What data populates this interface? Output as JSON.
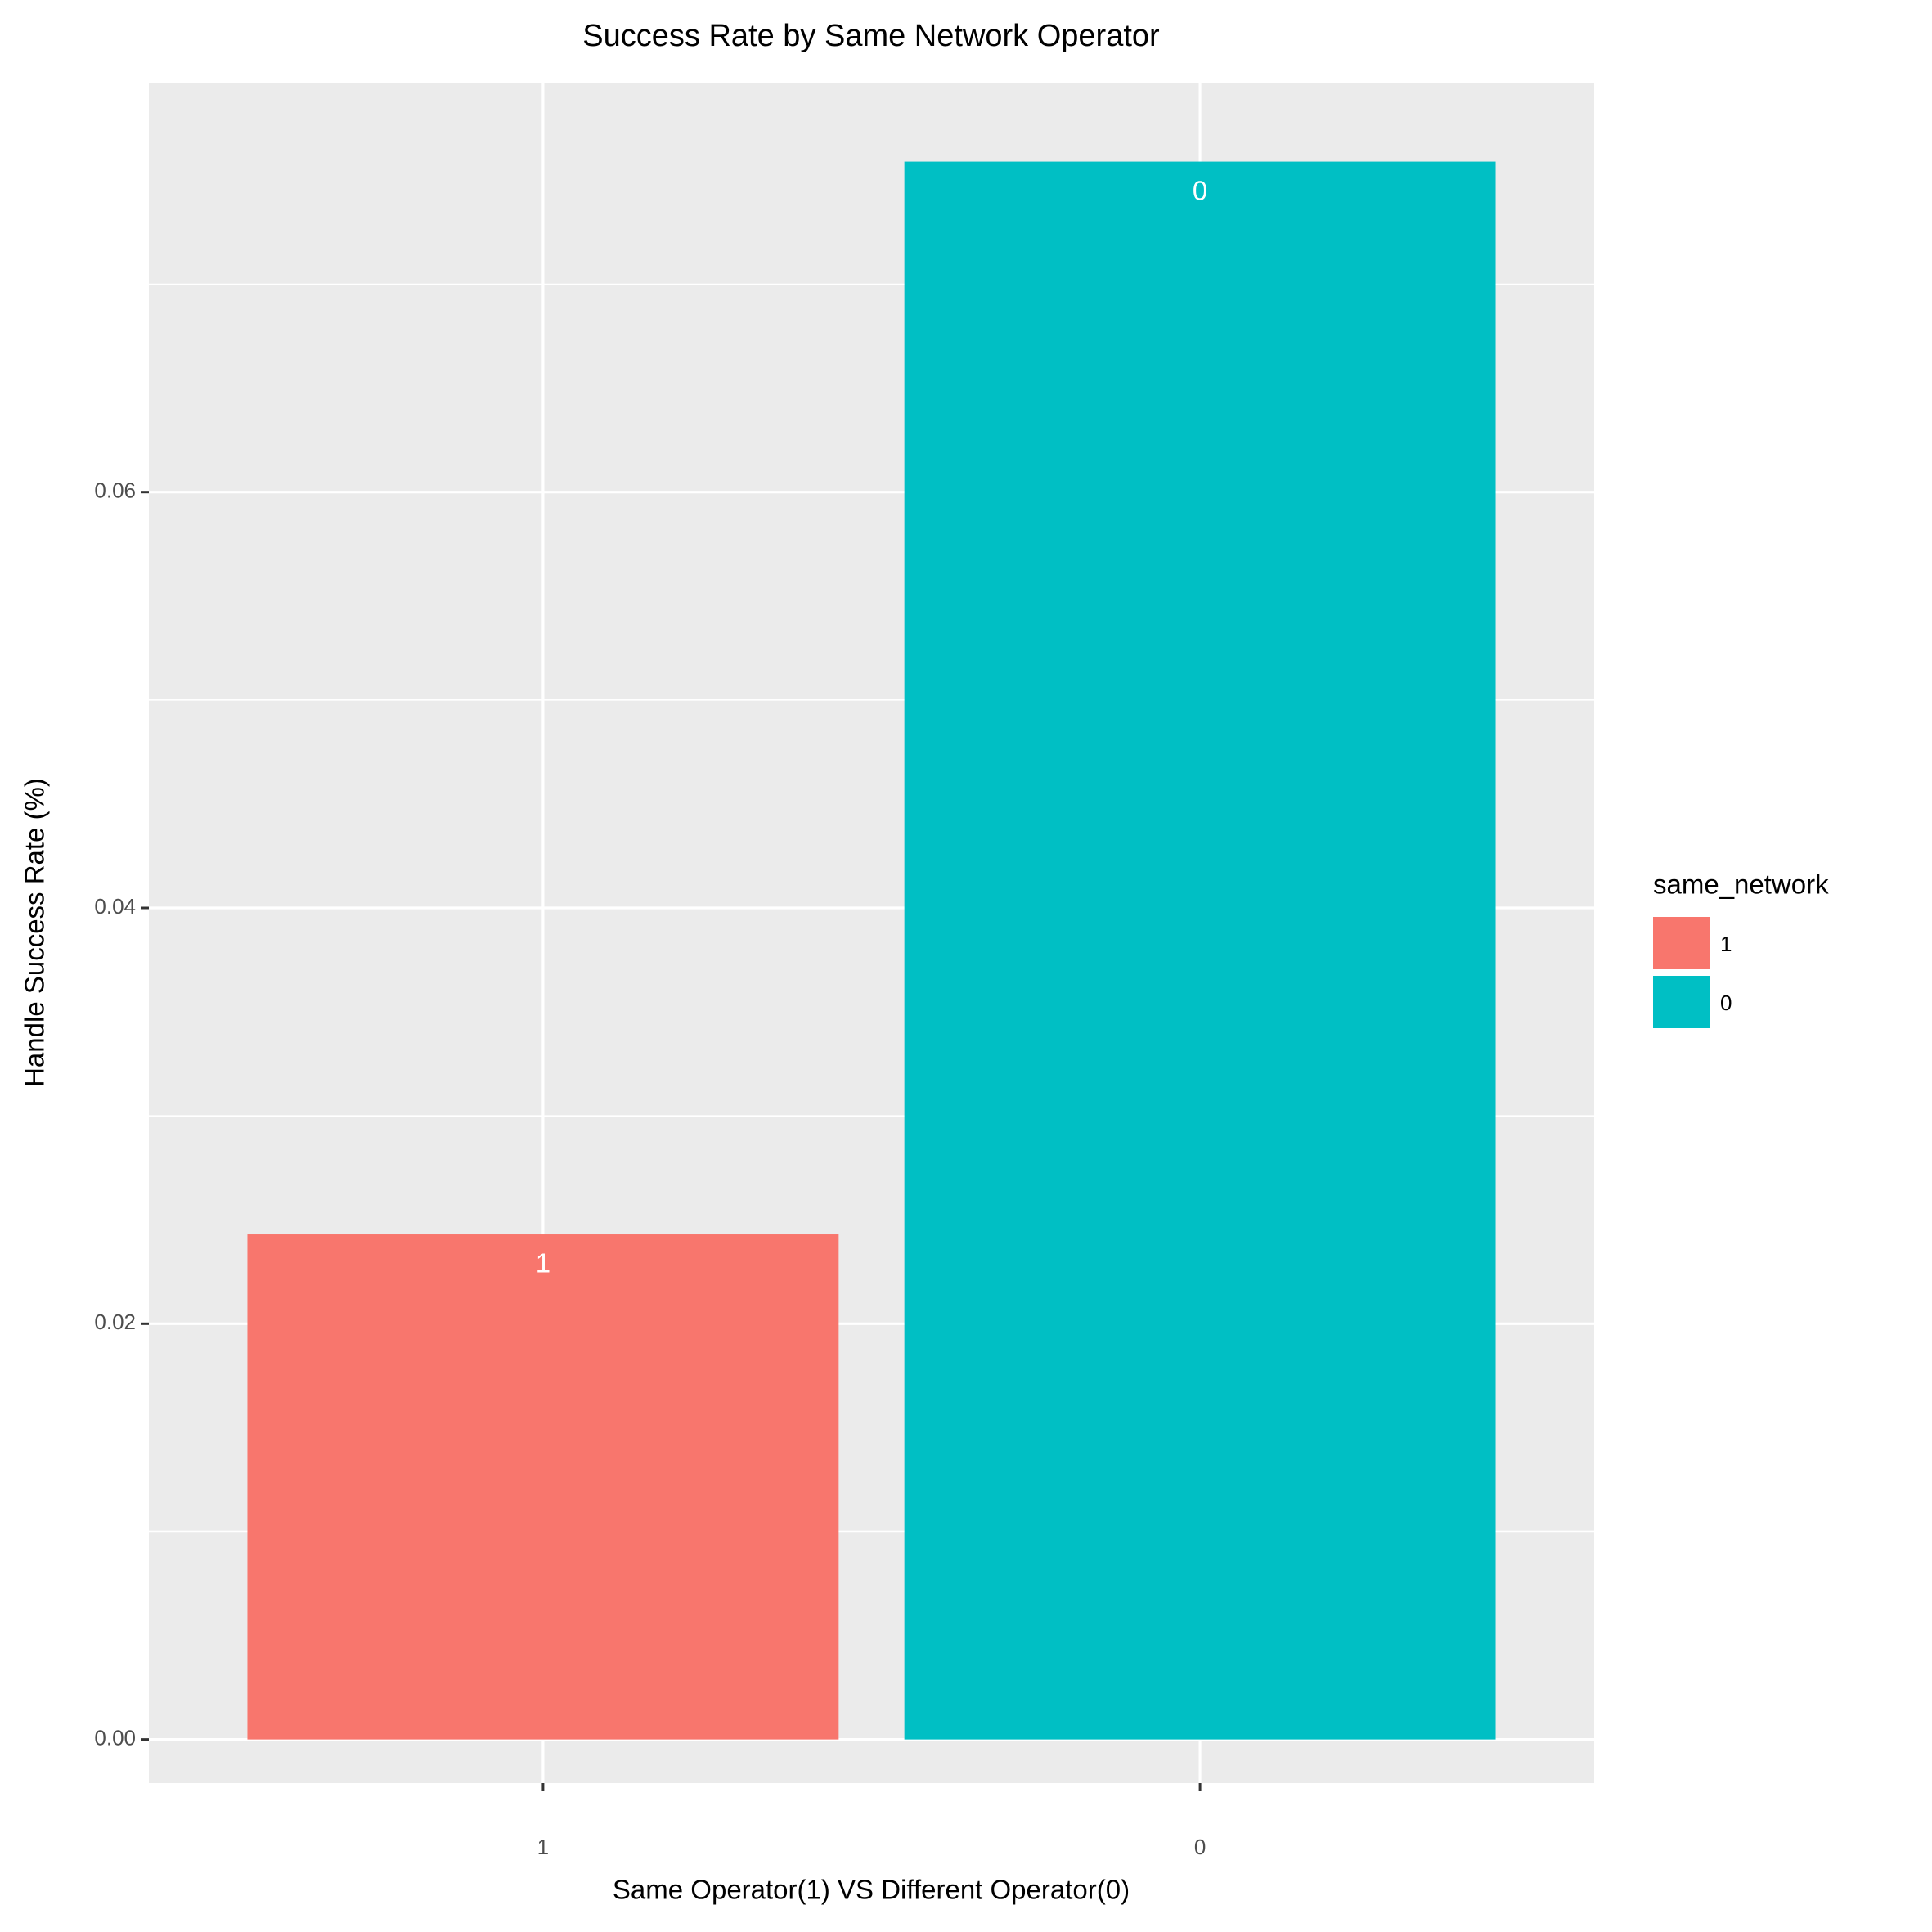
{
  "chart_data": {
    "type": "bar",
    "title": "Success Rate by Same Network Operator",
    "x_label": "Same Operator(1) VS Different Operator(0)",
    "y_label": "Handle Success Rate (%)",
    "categories": [
      "1",
      "0"
    ],
    "values": [
      0.0243,
      0.0759
    ],
    "colors": [
      "#f8766d",
      "#00bfc4"
    ],
    "ylim": [
      -0.0021,
      0.0797
    ],
    "yticks": [
      {
        "value": 0,
        "label": "0.00"
      },
      {
        "value": 0.02,
        "label": "0.02"
      },
      {
        "value": 0.04,
        "label": "0.04"
      },
      {
        "value": 0.06,
        "label": "0.06"
      }
    ],
    "y_minor_grid": [
      0.01,
      0.03,
      0.05,
      0.07
    ],
    "grid": true,
    "legend_title": "same_network",
    "legend_position": "right"
  }
}
